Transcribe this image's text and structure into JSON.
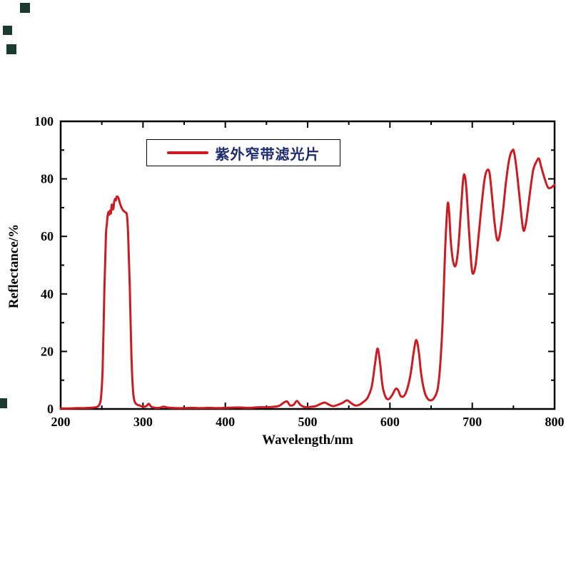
{
  "chart_data": {
    "type": "line",
    "title": "",
    "xlabel": "Wavelength/nm",
    "ylabel": "Reflectance/%",
    "legend_label": "紫外窄带滤光片",
    "xlim": [
      200,
      800
    ],
    "ylim": [
      0,
      100
    ],
    "x_major_ticks": [
      200,
      300,
      400,
      500,
      600,
      700,
      800
    ],
    "x_minor_ticks": [
      250,
      350,
      450,
      550,
      650,
      750
    ],
    "y_major_ticks": [
      0,
      20,
      40,
      60,
      80,
      100
    ],
    "y_minor_ticks": [
      10,
      30,
      50,
      70,
      90
    ],
    "grid": false,
    "legend_position": "top-left-inside",
    "colors": {
      "line": "#cb1b23",
      "axis": "#000000",
      "legend_text": "#1d2a6e"
    },
    "series": [
      {
        "name": "紫外窄带滤光片",
        "points": [
          [
            200,
            0.2
          ],
          [
            210,
            0.2
          ],
          [
            220,
            0.3
          ],
          [
            228,
            0.3
          ],
          [
            234,
            0.4
          ],
          [
            240,
            0.5
          ],
          [
            244,
            0.7
          ],
          [
            247,
            1.5
          ],
          [
            249,
            4
          ],
          [
            251,
            14
          ],
          [
            253,
            40
          ],
          [
            255,
            60
          ],
          [
            256,
            64
          ],
          [
            257,
            67
          ],
          [
            258,
            68.5
          ],
          [
            259,
            67.5
          ],
          [
            260,
            69
          ],
          [
            261,
            68
          ],
          [
            262,
            71
          ],
          [
            263,
            70
          ],
          [
            264,
            69.5
          ],
          [
            265,
            72
          ],
          [
            266,
            73
          ],
          [
            267,
            72.5
          ],
          [
            268,
            73.8
          ],
          [
            270,
            73.5
          ],
          [
            272,
            71.5
          ],
          [
            274,
            70
          ],
          [
            276,
            69
          ],
          [
            278,
            68.5
          ],
          [
            280,
            68
          ],
          [
            281,
            66
          ],
          [
            282,
            60
          ],
          [
            284,
            42
          ],
          [
            286,
            18
          ],
          [
            288,
            6
          ],
          [
            290,
            2.5
          ],
          [
            293,
            1.5
          ],
          [
            296,
            1.2
          ],
          [
            300,
            0.8
          ],
          [
            304,
            1
          ],
          [
            307,
            1.8
          ],
          [
            310,
            0.8
          ],
          [
            315,
            0.4
          ],
          [
            320,
            0.4
          ],
          [
            325,
            0.8
          ],
          [
            330,
            0.5
          ],
          [
            340,
            0.3
          ],
          [
            350,
            0.3
          ],
          [
            360,
            0.4
          ],
          [
            370,
            0.3
          ],
          [
            380,
            0.4
          ],
          [
            390,
            0.3
          ],
          [
            400,
            0.4
          ],
          [
            410,
            0.5
          ],
          [
            420,
            0.5
          ],
          [
            430,
            0.4
          ],
          [
            440,
            0.6
          ],
          [
            450,
            0.6
          ],
          [
            460,
            0.8
          ],
          [
            466,
            1.2
          ],
          [
            471,
            2.2
          ],
          [
            475,
            2.6
          ],
          [
            479,
            1.2
          ],
          [
            483,
            1.5
          ],
          [
            487,
            2.8
          ],
          [
            491,
            1.5
          ],
          [
            495,
            0.8
          ],
          [
            500,
            0.6
          ],
          [
            505,
            0.8
          ],
          [
            510,
            1
          ],
          [
            516,
            1.8
          ],
          [
            521,
            2.2
          ],
          [
            526,
            1.5
          ],
          [
            531,
            1
          ],
          [
            537,
            1.5
          ],
          [
            543,
            2.2
          ],
          [
            548,
            3
          ],
          [
            553,
            2
          ],
          [
            558,
            1.2
          ],
          [
            563,
            1.5
          ],
          [
            568,
            2.5
          ],
          [
            573,
            4
          ],
          [
            578,
            8
          ],
          [
            582,
            16
          ],
          [
            585,
            21
          ],
          [
            588,
            16
          ],
          [
            591,
            8
          ],
          [
            595,
            4
          ],
          [
            599,
            3.5
          ],
          [
            603,
            5
          ],
          [
            607,
            7
          ],
          [
            610,
            6.5
          ],
          [
            613,
            4.5
          ],
          [
            617,
            4.5
          ],
          [
            621,
            7
          ],
          [
            625,
            12
          ],
          [
            629,
            20
          ],
          [
            632,
            24
          ],
          [
            635,
            20
          ],
          [
            638,
            12
          ],
          [
            642,
            6
          ],
          [
            646,
            3.5
          ],
          [
            650,
            3
          ],
          [
            654,
            4
          ],
          [
            658,
            7
          ],
          [
            661,
            15
          ],
          [
            664,
            30
          ],
          [
            667,
            55
          ],
          [
            670,
            71
          ],
          [
            672,
            68
          ],
          [
            674,
            58
          ],
          [
            677,
            51
          ],
          [
            680,
            50
          ],
          [
            683,
            56
          ],
          [
            686,
            68
          ],
          [
            689,
            80
          ],
          [
            691,
            81
          ],
          [
            693,
            76
          ],
          [
            696,
            62
          ],
          [
            699,
            50
          ],
          [
            701,
            47
          ],
          [
            704,
            50
          ],
          [
            707,
            58
          ],
          [
            711,
            70
          ],
          [
            715,
            80
          ],
          [
            718,
            83
          ],
          [
            721,
            82
          ],
          [
            724,
            74
          ],
          [
            727,
            65
          ],
          [
            730,
            59
          ],
          [
            733,
            60
          ],
          [
            737,
            68
          ],
          [
            741,
            79
          ],
          [
            745,
            87
          ],
          [
            749,
            90
          ],
          [
            751,
            89
          ],
          [
            754,
            83
          ],
          [
            758,
            72
          ],
          [
            761,
            64
          ],
          [
            763,
            62
          ],
          [
            766,
            66
          ],
          [
            770,
            75
          ],
          [
            774,
            83
          ],
          [
            778,
            86
          ],
          [
            781,
            87
          ],
          [
            784,
            84
          ],
          [
            788,
            80
          ],
          [
            792,
            77
          ],
          [
            796,
            77
          ],
          [
            800,
            78
          ]
        ]
      }
    ]
  }
}
